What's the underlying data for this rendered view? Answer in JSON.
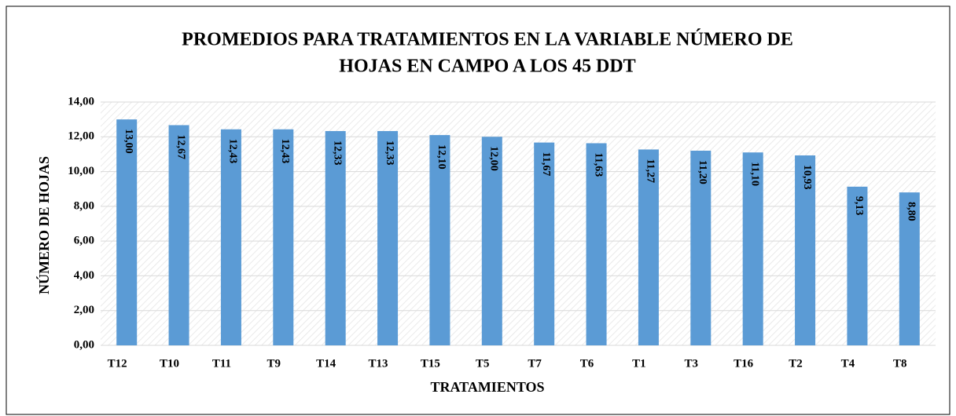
{
  "chart_data": {
    "type": "bar",
    "title": [
      "PROMEDIOS PARA TRATAMIENTOS EN LA VARIABLE NÚMERO DE",
      "HOJAS EN CAMPO A LOS 45 DDT"
    ],
    "x_label": "TRATAMIENTOS",
    "y_label": "NÚMERO DE HOJAS",
    "categories": [
      "T12",
      "T10",
      "T11",
      "T9",
      "T14",
      "T13",
      "T15",
      "T5",
      "T7",
      "T6",
      "T1",
      "T3",
      "T16",
      "T2",
      "T4",
      "T8"
    ],
    "values": [
      13.0,
      12.67,
      12.43,
      12.43,
      12.33,
      12.33,
      12.1,
      12.0,
      11.67,
      11.63,
      11.27,
      11.2,
      11.1,
      10.93,
      9.13,
      8.8
    ],
    "value_labels": [
      "13,00",
      "12,67",
      "12,43",
      "12,43",
      "12,33",
      "12,33",
      "12,10",
      "12,00",
      "11,67",
      "11,63",
      "11,27",
      "11,20",
      "11,10",
      "10,93",
      "9,13",
      "8,80"
    ],
    "color": "#5b9bd5",
    "ylim": [
      0,
      14
    ],
    "yticks": [
      {
        "value": 0,
        "label": "0,00"
      },
      {
        "value": 2,
        "label": "2,00"
      },
      {
        "value": 4,
        "label": "4,00"
      },
      {
        "value": 6,
        "label": "6,00"
      },
      {
        "value": 8,
        "label": "8,00"
      },
      {
        "value": 10,
        "label": "10,00"
      },
      {
        "value": 12,
        "label": "12,00"
      },
      {
        "value": 14,
        "label": "14,00"
      }
    ],
    "grid": true
  }
}
